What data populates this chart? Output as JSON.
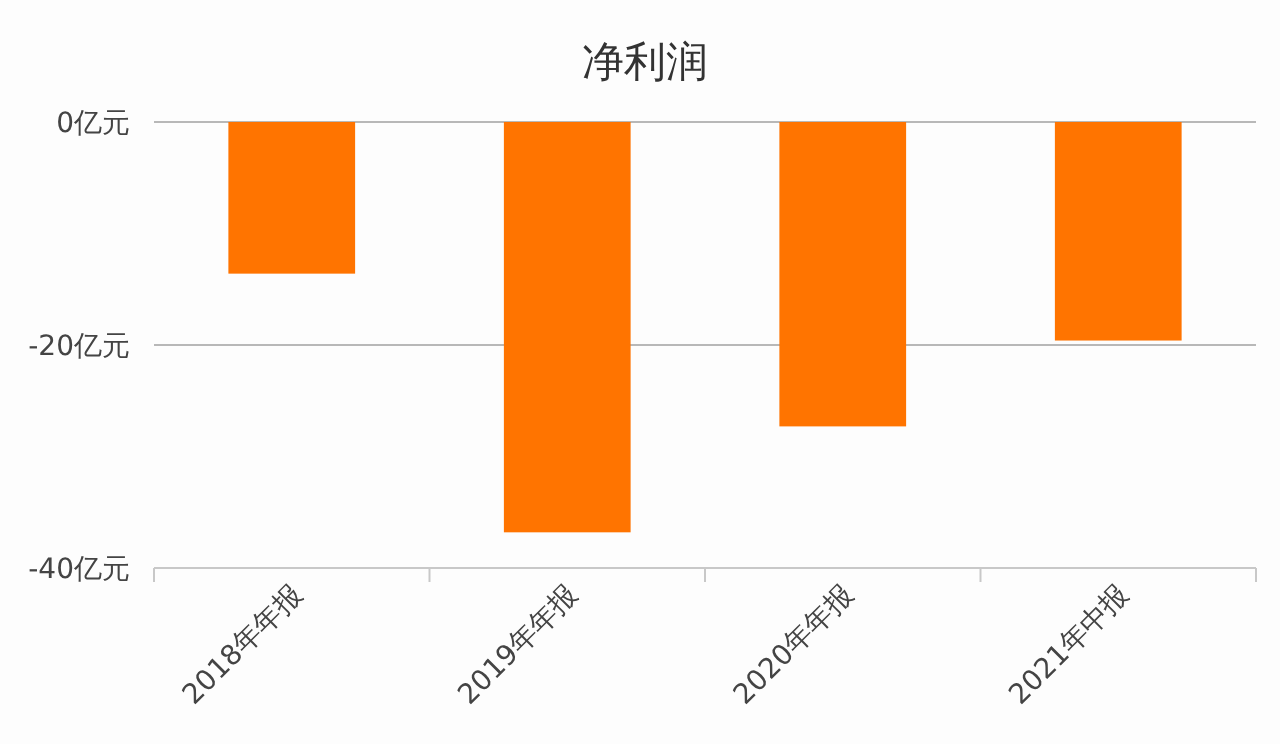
{
  "chart_data": {
    "type": "bar",
    "title": "净利润",
    "categories": [
      "2018年年报",
      "2019年年报",
      "2020年年报",
      "2021年中报"
    ],
    "series": [
      {
        "color": "#ff7400",
        "values": [
          -13.6,
          -36.8,
          -27.3,
          -19.6
        ]
      }
    ],
    "ylim": [
      -40,
      0
    ],
    "yticks": [
      {
        "value": 0,
        "label": "0亿元"
      },
      {
        "value": -20,
        "label": "-20亿元"
      },
      {
        "value": -40,
        "label": "-40亿元"
      }
    ],
    "grid": "y"
  }
}
